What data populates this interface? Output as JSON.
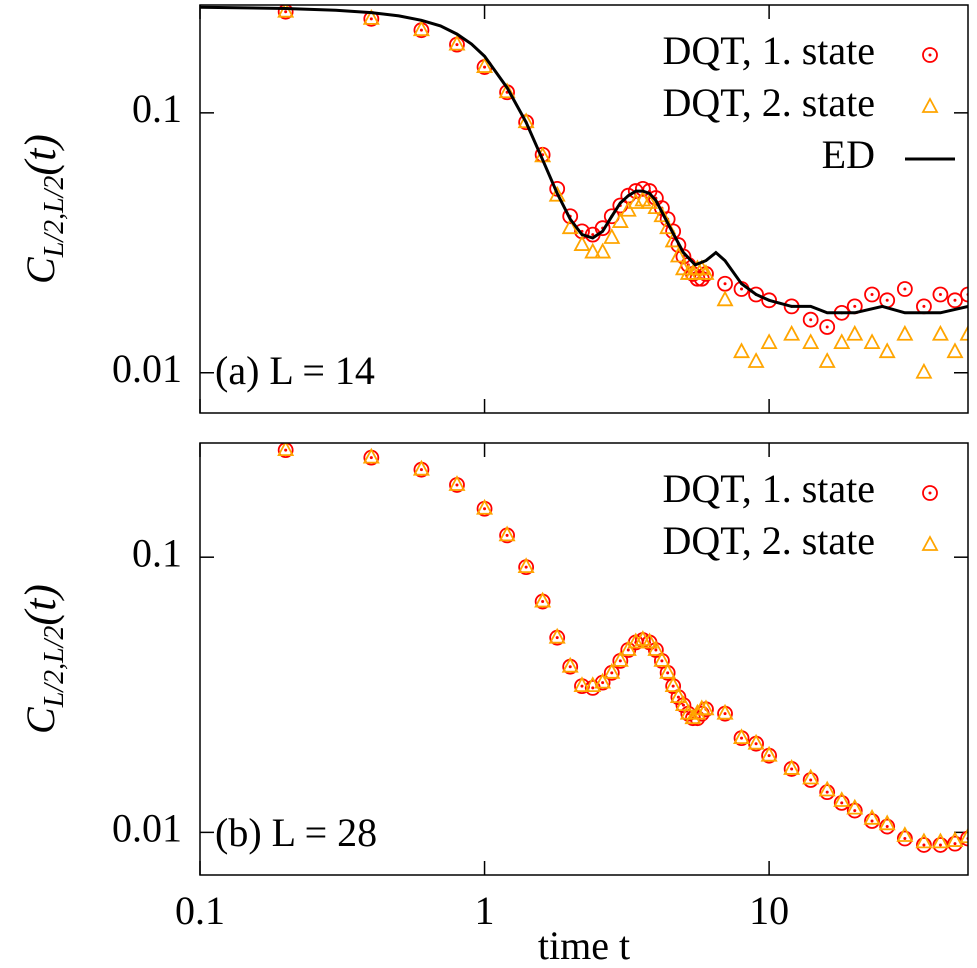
{
  "chart_data": [
    {
      "type": "line",
      "xscale": "log",
      "yscale": "log",
      "xlim": [
        0.1,
        50
      ],
      "ylim": [
        0.007,
        0.26
      ],
      "xticks": [
        0.1,
        1,
        10
      ],
      "yticks": [
        0.01,
        0.1
      ],
      "show_xtick_labels": false,
      "y_label": {
        "main": "C",
        "sub": "L/2,L/2",
        "tail": "(t)"
      },
      "annotation": "(a) L = 14",
      "legend": "upper right",
      "series": [
        {
          "name": "DQT, 1. state",
          "color": "#ff0000",
          "marker": "circle",
          "x": [
            0.2,
            0.4,
            0.6,
            0.8,
            1,
            1.2,
            1.4,
            1.6,
            1.8,
            2,
            2.2,
            2.4,
            2.6,
            2.8,
            3,
            3.2,
            3.4,
            3.6,
            3.8,
            4,
            4.2,
            4.4,
            4.6,
            4.8,
            5,
            5.2,
            5.4,
            5.6,
            5.8,
            6,
            7,
            8,
            9,
            10,
            12,
            14,
            16,
            18,
            20,
            23,
            26,
            30,
            35,
            40,
            45,
            50
          ],
          "values": [
            0.245,
            0.23,
            0.208,
            0.183,
            0.15,
            0.12,
            0.092,
            0.069,
            0.051,
            0.04,
            0.035,
            0.034,
            0.036,
            0.04,
            0.044,
            0.048,
            0.05,
            0.051,
            0.05,
            0.047,
            0.043,
            0.039,
            0.035,
            0.031,
            0.028,
            0.026,
            0.024,
            0.023,
            0.023,
            0.024,
            0.022,
            0.021,
            0.02,
            0.019,
            0.018,
            0.016,
            0.015,
            0.017,
            0.018,
            0.02,
            0.019,
            0.021,
            0.018,
            0.02,
            0.019,
            0.02
          ]
        },
        {
          "name": "DQT, 2. state",
          "color": "#ffa500",
          "marker": "triangle",
          "x": [
            0.2,
            0.4,
            0.6,
            0.8,
            1,
            1.2,
            1.4,
            1.6,
            1.8,
            2,
            2.2,
            2.4,
            2.6,
            2.8,
            3,
            3.2,
            3.4,
            3.6,
            3.8,
            4,
            4.2,
            4.4,
            4.6,
            4.8,
            5,
            5.2,
            5.4,
            5.6,
            5.8,
            6,
            7,
            8,
            9,
            10,
            12,
            14,
            16,
            18,
            20,
            23,
            26,
            30,
            35,
            40,
            45,
            50
          ],
          "values": [
            0.245,
            0.23,
            0.208,
            0.183,
            0.15,
            0.12,
            0.092,
            0.068,
            0.048,
            0.036,
            0.031,
            0.029,
            0.029,
            0.033,
            0.038,
            0.042,
            0.045,
            0.046,
            0.045,
            0.043,
            0.04,
            0.036,
            0.032,
            0.028,
            0.025,
            0.024,
            0.024,
            0.025,
            0.025,
            0.024,
            0.019,
            0.012,
            0.011,
            0.013,
            0.014,
            0.013,
            0.011,
            0.013,
            0.014,
            0.013,
            0.012,
            0.014,
            0.01,
            0.014,
            0.012,
            0.014
          ]
        },
        {
          "name": "ED",
          "color": "#000000",
          "marker": "none",
          "x": [
            0.1,
            0.2,
            0.3,
            0.4,
            0.5,
            0.6,
            0.7,
            0.8,
            0.9,
            1,
            1.2,
            1.4,
            1.6,
            1.8,
            2,
            2.2,
            2.4,
            2.6,
            2.8,
            3,
            3.2,
            3.4,
            3.6,
            3.8,
            4,
            4.5,
            5,
            5.5,
            6,
            6.5,
            7,
            8,
            9,
            10,
            12,
            14,
            16,
            18,
            20,
            25,
            30,
            40,
            50
          ],
          "values": [
            0.255,
            0.252,
            0.248,
            0.243,
            0.236,
            0.227,
            0.216,
            0.201,
            0.184,
            0.165,
            0.125,
            0.092,
            0.066,
            0.049,
            0.039,
            0.034,
            0.033,
            0.035,
            0.04,
            0.045,
            0.048,
            0.05,
            0.05,
            0.049,
            0.046,
            0.036,
            0.029,
            0.026,
            0.027,
            0.029,
            0.027,
            0.022,
            0.02,
            0.019,
            0.018,
            0.018,
            0.017,
            0.017,
            0.017,
            0.018,
            0.017,
            0.017,
            0.018
          ]
        }
      ]
    },
    {
      "type": "line",
      "xscale": "log",
      "yscale": "log",
      "xlim": [
        0.1,
        50
      ],
      "ylim": [
        0.007,
        0.26
      ],
      "xticks": [
        0.1,
        1,
        10
      ],
      "yticks": [
        0.01,
        0.1
      ],
      "show_xtick_labels": true,
      "x_label": "time t",
      "y_label": {
        "main": "C",
        "sub": "L/2,L/2",
        "tail": "(t)"
      },
      "annotation": "(b) L = 28",
      "legend": "upper right",
      "series": [
        {
          "name": "DQT, 1. state",
          "color": "#ff0000",
          "marker": "circle",
          "x": [
            0.2,
            0.4,
            0.6,
            0.8,
            1,
            1.2,
            1.4,
            1.6,
            1.8,
            2,
            2.2,
            2.4,
            2.6,
            2.8,
            3,
            3.2,
            3.4,
            3.6,
            3.8,
            4,
            4.2,
            4.4,
            4.6,
            4.8,
            5,
            5.2,
            5.4,
            5.6,
            5.8,
            6,
            7,
            8,
            9,
            10,
            12,
            14,
            16,
            18,
            20,
            23,
            26,
            30,
            35,
            40,
            45,
            50
          ],
          "values": [
            0.245,
            0.23,
            0.208,
            0.183,
            0.15,
            0.12,
            0.092,
            0.069,
            0.051,
            0.04,
            0.034,
            0.0335,
            0.035,
            0.038,
            0.042,
            0.046,
            0.049,
            0.05,
            0.049,
            0.046,
            0.042,
            0.038,
            0.034,
            0.031,
            0.029,
            0.027,
            0.026,
            0.026,
            0.027,
            0.028,
            0.027,
            0.022,
            0.021,
            0.019,
            0.017,
            0.0155,
            0.014,
            0.0128,
            0.012,
            0.011,
            0.0105,
            0.0095,
            0.009,
            0.009,
            0.0091,
            0.0095
          ]
        },
        {
          "name": "DQT, 2. state",
          "color": "#ffa500",
          "marker": "triangle",
          "x": [
            0.2,
            0.4,
            0.6,
            0.8,
            1,
            1.2,
            1.4,
            1.6,
            1.8,
            2,
            2.2,
            2.4,
            2.6,
            2.8,
            3,
            3.2,
            3.4,
            3.6,
            3.8,
            4,
            4.2,
            4.4,
            4.6,
            4.8,
            5,
            5.2,
            5.4,
            5.6,
            5.8,
            6,
            7,
            8,
            9,
            10,
            12,
            14,
            16,
            18,
            20,
            23,
            26,
            30,
            35,
            40,
            45,
            50
          ],
          "values": [
            0.245,
            0.23,
            0.208,
            0.183,
            0.15,
            0.12,
            0.092,
            0.069,
            0.051,
            0.04,
            0.034,
            0.034,
            0.035,
            0.038,
            0.042,
            0.046,
            0.049,
            0.05,
            0.049,
            0.046,
            0.042,
            0.038,
            0.034,
            0.031,
            0.029,
            0.027,
            0.026,
            0.027,
            0.028,
            0.028,
            0.027,
            0.022,
            0.021,
            0.019,
            0.017,
            0.0157,
            0.0142,
            0.013,
            0.0122,
            0.0112,
            0.0107,
            0.0097,
            0.0092,
            0.0092,
            0.0093,
            0.0096
          ]
        }
      ]
    }
  ]
}
